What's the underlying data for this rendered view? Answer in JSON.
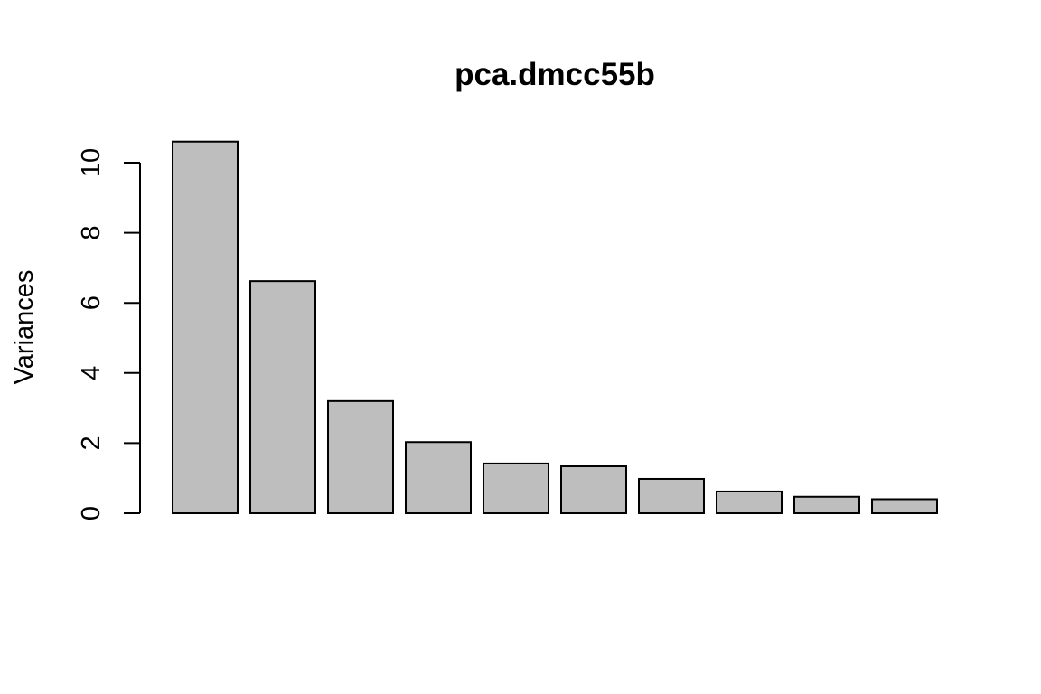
{
  "chart_data": {
    "type": "bar",
    "title": "pca.dmcc55b",
    "xlabel": "",
    "ylabel": "Variances",
    "ylim": [
      0,
      10.6
    ],
    "yticks": [
      0,
      2,
      4,
      6,
      8,
      10
    ],
    "values": [
      10.6,
      6.62,
      3.2,
      2.03,
      1.42,
      1.34,
      0.98,
      0.62,
      0.47,
      0.4
    ],
    "bar_color": "#bebebe",
    "grid": false
  }
}
